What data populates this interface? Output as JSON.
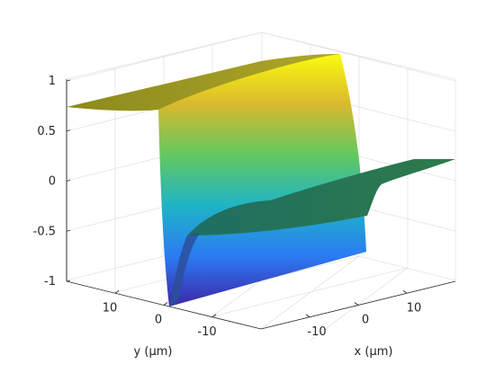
{
  "chart_data": {
    "type": "surface",
    "title": "",
    "xlabel": "x (μm)",
    "ylabel": "y (μm)",
    "zlabel": "",
    "xlim": [
      -20,
      20
    ],
    "ylim": [
      -20,
      20
    ],
    "zlim": [
      -1,
      1
    ],
    "x_ticks": [
      -10,
      0,
      10
    ],
    "y_ticks": [
      -10,
      0,
      10
    ],
    "z_ticks": [
      -1,
      -0.5,
      0,
      0.5,
      1
    ],
    "x_tick_labels": [
      "-10",
      "0",
      "10"
    ],
    "y_tick_labels": [
      "-10",
      "0",
      "10"
    ],
    "z_tick_labels": [
      "-1",
      "-0.5",
      "0",
      "0.5",
      "1"
    ],
    "grid": true,
    "box": false,
    "colormap": "parula",
    "colormap_colors": [
      "#3e26a8",
      "#2b7bf2",
      "#1fb4c6",
      "#62c860",
      "#d9b92e",
      "#f9fb0e"
    ],
    "surface": {
      "description_note": "",
      "wall_x": 0,
      "high_plateau": {
        "x_range": [
          -20,
          0
        ],
        "z": 0.75
      },
      "low_plateau": {
        "x_range": [
          0,
          20
        ],
        "z": 0.0
      },
      "wall_z_range": [
        -1,
        1
      ]
    }
  }
}
